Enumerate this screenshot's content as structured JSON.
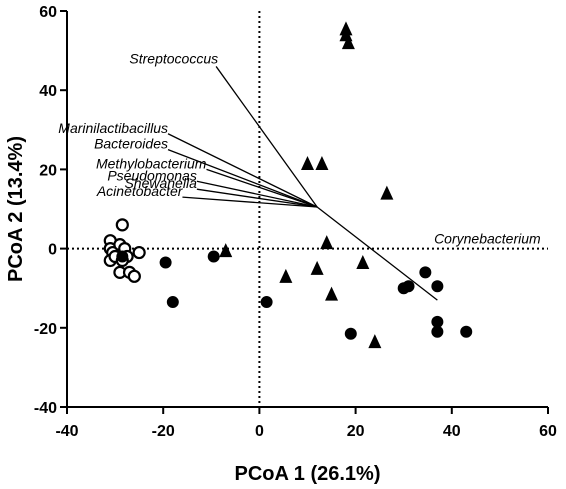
{
  "chart_data": {
    "type": "scatter",
    "title": "",
    "xlabel": "PCoA 1 (26.1%)",
    "ylabel": "PCoA 2 (13.4%)",
    "xlim": [
      -40,
      60
    ],
    "ylim": [
      -40,
      60
    ],
    "xticks": [
      "-40",
      "-20",
      "0",
      "20",
      "40",
      "60"
    ],
    "yticks": [
      "-40",
      "-20",
      "0",
      "20",
      "40",
      "60"
    ],
    "grid": false,
    "reference_lines": [
      "x = 0",
      "y = 0"
    ],
    "series": [
      {
        "marker": "open-circle",
        "points": [
          [
            -31,
            2
          ],
          [
            -31,
            0
          ],
          [
            -30.5,
            -1
          ],
          [
            -31,
            -3
          ],
          [
            -30,
            -2
          ],
          [
            -29,
            1
          ],
          [
            -28.5,
            6
          ],
          [
            -28,
            0
          ],
          [
            -27.5,
            -2
          ],
          [
            -28.5,
            -3
          ],
          [
            -29,
            -6
          ],
          [
            -27,
            -6
          ],
          [
            -26,
            -7
          ],
          [
            -25,
            -1
          ]
        ]
      },
      {
        "marker": "filled-circle",
        "points": [
          [
            -28.5,
            -2
          ],
          [
            -19.5,
            -3.5
          ],
          [
            -18,
            -13.5
          ],
          [
            -9.5,
            -2
          ],
          [
            1.5,
            -13.5
          ],
          [
            19,
            -21.5
          ],
          [
            30,
            -10
          ],
          [
            31,
            -9.5
          ],
          [
            34.5,
            -6
          ],
          [
            37,
            -9.5
          ],
          [
            37,
            -18.5
          ],
          [
            37,
            -21
          ],
          [
            43,
            -21
          ]
        ]
      },
      {
        "marker": "filled-triangle",
        "points": [
          [
            -7,
            -0.5
          ],
          [
            5.5,
            -7
          ],
          [
            10,
            21.5
          ],
          [
            12,
            -5
          ],
          [
            13,
            21.5
          ],
          [
            14,
            1.5
          ],
          [
            15,
            -11.5
          ],
          [
            18,
            55.5
          ],
          [
            18,
            54
          ],
          [
            18.5,
            52
          ],
          [
            21.5,
            -3.5
          ],
          [
            24,
            -23.5
          ],
          [
            26.5,
            14
          ]
        ]
      }
    ],
    "vectors": {
      "origin": [
        12,
        10.5
      ],
      "items": [
        {
          "label": "Streptococcus",
          "end": [
            -9,
            46
          ]
        },
        {
          "label": "Marinilactibacillus",
          "end": [
            -19,
            29
          ]
        },
        {
          "label": "Bacteroides",
          "end": [
            -19,
            25
          ]
        },
        {
          "label": "Methylobacterium",
          "end": [
            -11,
            20
          ]
        },
        {
          "label": "Pseudomonas",
          "end": [
            -13,
            17
          ]
        },
        {
          "label": "Shewanella",
          "end": [
            -13,
            15
          ]
        },
        {
          "label": "Acinetobacter",
          "end": [
            -16,
            13
          ]
        },
        {
          "label": "Corynebacterium",
          "end": [
            37,
            -13
          ]
        }
      ]
    }
  }
}
